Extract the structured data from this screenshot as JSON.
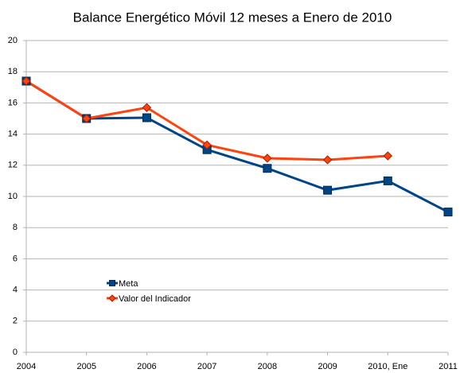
{
  "chart_data": {
    "type": "line",
    "title": "Balance Energético Móvil 12 meses a Enero de 2010",
    "categories": [
      "2004",
      "2005",
      "2006",
      "2007",
      "2008",
      "2009",
      "2010, Ene",
      "2011"
    ],
    "series": [
      {
        "name": "Meta",
        "color": "#004586",
        "values": [
          17.4,
          15.0,
          15.05,
          13.0,
          11.8,
          10.4,
          11.0,
          9.0
        ]
      },
      {
        "name": "Valor del Indicador",
        "color": "#ff420e",
        "values": [
          17.4,
          15.0,
          15.7,
          13.3,
          12.45,
          12.35,
          12.6,
          null
        ]
      }
    ],
    "ylim": [
      0,
      20
    ],
    "yticks": [
      0,
      2,
      4,
      6,
      8,
      10,
      12,
      14,
      16,
      18,
      20
    ],
    "grid": true
  }
}
